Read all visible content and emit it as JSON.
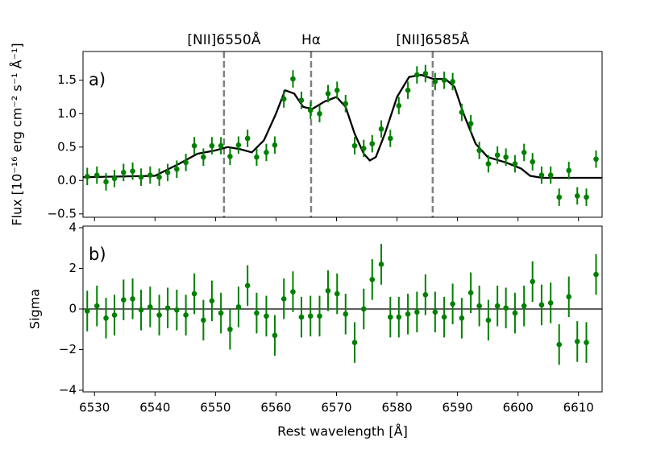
{
  "chart_data": [
    {
      "type": "errorbar",
      "panel_label": "a)",
      "ylabel": "Flux [10⁻¹⁶ erg cm⁻² s⁻¹ Å⁻¹]",
      "xlim": [
        6528.1,
        6613.9
      ],
      "ylim": [
        -0.55,
        1.93
      ],
      "xticks": [
        6530,
        6540,
        6550,
        6560,
        6570,
        6580,
        6590,
        6600,
        6610
      ],
      "yticks": [
        {
          "value": -0.5,
          "label": "−0.5"
        },
        {
          "value": 0,
          "label": "0.0"
        },
        0.5,
        {
          "value": 1,
          "label": "1.0"
        },
        1.5
      ],
      "color": "#008000",
      "error": 0.13,
      "x": [
        6528.8,
        6530.4,
        6531.9,
        6533.3,
        6534.8,
        6536.3,
        6537.7,
        6539.2,
        6540.7,
        6542.1,
        6543.6,
        6545.1,
        6546.5,
        6548.0,
        6549.4,
        6550.9,
        6552.4,
        6553.8,
        6555.3,
        6556.8,
        6558.4,
        6559.8,
        6561.3,
        6562.8,
        6564.2,
        6565.7,
        6567.2,
        6568.6,
        6570.1,
        6571.5,
        6573.0,
        6574.5,
        6575.9,
        6577.4,
        6578.9,
        6580.3,
        6581.8,
        6583.3,
        6584.7,
        6586.3,
        6587.8,
        6589.2,
        6590.7,
        6592.2,
        6593.6,
        6595.1,
        6596.6,
        6598.0,
        6599.5,
        6601.0,
        6602.4,
        6603.9,
        6605.4,
        6606.8,
        6608.4,
        6609.8,
        6611.3,
        6612.9
      ],
      "values": [
        0.06,
        0.08,
        -0.02,
        0.03,
        0.12,
        0.14,
        0.05,
        0.08,
        0.05,
        0.12,
        0.17,
        0.27,
        0.52,
        0.35,
        0.52,
        0.52,
        0.36,
        0.53,
        0.63,
        0.35,
        0.42,
        0.53,
        1.22,
        1.52,
        1.2,
        1.05,
        1.0,
        1.3,
        1.35,
        1.15,
        0.52,
        0.48,
        0.55,
        0.77,
        0.63,
        1.12,
        1.35,
        1.58,
        1.6,
        1.48,
        1.5,
        1.48,
        1.02,
        0.85,
        0.45,
        0.25,
        0.38,
        0.35,
        0.25,
        0.42,
        0.28,
        0.08,
        0.08,
        -0.25,
        0.15,
        -0.23,
        -0.25,
        0.32
      ],
      "model": {
        "color": "#000000",
        "x": [
          6528.1,
          6540,
          6544,
          6547,
          6550,
          6552,
          6554,
          6556,
          6558,
          6560,
          6561.5,
          6563,
          6564.5,
          6566,
          6568,
          6570,
          6571.5,
          6573,
          6574.5,
          6575.5,
          6576.5,
          6578,
          6580,
          6582,
          6584,
          6586,
          6588,
          6589.5,
          6591,
          6593,
          6595,
          6598,
          6600.5,
          6602,
          6604,
          6613.9
        ],
        "values": [
          0.05,
          0.07,
          0.25,
          0.4,
          0.45,
          0.5,
          0.47,
          0.42,
          0.6,
          1.0,
          1.35,
          1.3,
          1.1,
          1.07,
          1.18,
          1.25,
          1.1,
          0.7,
          0.4,
          0.3,
          0.35,
          0.7,
          1.25,
          1.55,
          1.58,
          1.52,
          1.52,
          1.4,
          1.0,
          0.55,
          0.35,
          0.27,
          0.18,
          0.07,
          0.04,
          0.04
        ]
      },
      "line_color": "#808080",
      "lines": [
        {
          "x": 6551.4,
          "label": "[NII]6550Å"
        },
        {
          "x": 6565.8,
          "label": "Hα"
        },
        {
          "x": 6585.9,
          "label": "[NII]6585Å"
        }
      ]
    },
    {
      "type": "errorbar",
      "panel_label": "b)",
      "ylabel": "Sigma",
      "xlabel": "Rest wavelength [Å]",
      "xlim": [
        6528.1,
        6613.9
      ],
      "ylim": [
        -4.08,
        4.08
      ],
      "xticks": [
        6530,
        6540,
        6550,
        6560,
        6570,
        6580,
        6590,
        6600,
        6610
      ],
      "yticks": [
        {
          "value": -4,
          "label": "−4"
        },
        {
          "value": -2,
          "label": "−2"
        },
        0,
        2,
        4
      ],
      "color": "#008000",
      "error": 1,
      "reference_line": 0,
      "x": [
        6528.8,
        6530.4,
        6531.9,
        6533.3,
        6534.8,
        6536.3,
        6537.7,
        6539.2,
        6540.7,
        6542.1,
        6543.6,
        6545.1,
        6546.5,
        6548.0,
        6549.4,
        6550.9,
        6552.4,
        6553.8,
        6555.3,
        6556.8,
        6558.4,
        6559.8,
        6561.3,
        6562.8,
        6564.2,
        6565.7,
        6567.2,
        6568.6,
        6570.1,
        6571.5,
        6573.0,
        6574.5,
        6575.9,
        6577.4,
        6578.9,
        6580.3,
        6581.8,
        6583.3,
        6584.7,
        6586.3,
        6587.8,
        6589.2,
        6590.7,
        6592.2,
        6593.6,
        6595.1,
        6596.6,
        6598.0,
        6599.5,
        6601.0,
        6602.4,
        6603.9,
        6605.4,
        6606.8,
        6608.4,
        6609.8,
        6611.3,
        6612.9
      ],
      "values": [
        -0.1,
        0.15,
        -0.45,
        -0.3,
        0.45,
        0.5,
        -0.05,
        0.1,
        -0.3,
        0.05,
        -0.05,
        -0.3,
        0.75,
        -0.55,
        0.4,
        -0.2,
        -1.0,
        0.1,
        1.15,
        -0.2,
        -0.35,
        -1.3,
        0.5,
        0.85,
        -0.4,
        -0.35,
        -0.35,
        0.9,
        0.75,
        -0.25,
        -1.65,
        0.0,
        1.45,
        2.2,
        -0.4,
        -0.4,
        -0.25,
        -0.15,
        0.7,
        -0.15,
        -0.4,
        0.25,
        -0.45,
        0.8,
        0.15,
        -0.55,
        0.15,
        0.05,
        -0.2,
        0.15,
        1.35,
        0.2,
        0.3,
        -1.75,
        0.6,
        -1.6,
        -1.65,
        1.7
      ]
    }
  ]
}
